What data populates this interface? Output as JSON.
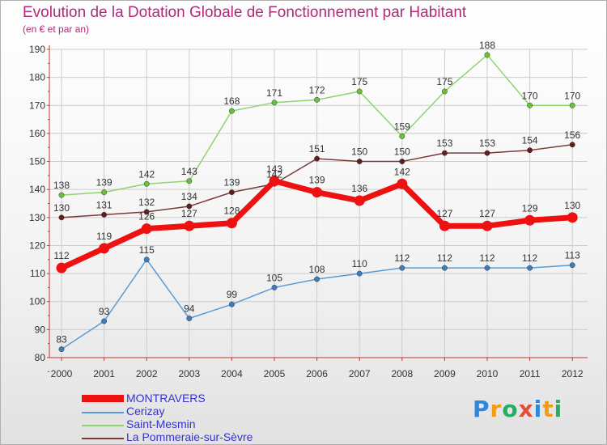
{
  "title": "Evolution de la Dotation Globale de Fonctionnement par Habitant",
  "subtitle": "(en € et par an)",
  "logo": [
    "P",
    "r",
    "o",
    "x",
    "i",
    "t",
    "i"
  ],
  "colors": {
    "title": "#b02a7a",
    "axis": "#c0392b",
    "grid": "#cccccc",
    "tick_label": "#333333"
  },
  "chart_data": {
    "type": "line",
    "title": "Evolution de la Dotation Globale de Fonctionnement par Habitant",
    "ylabel": "(en € et par an)",
    "xlabel": "",
    "categories": [
      "2000",
      "2001",
      "2002",
      "2003",
      "2004",
      "2005",
      "2006",
      "2007",
      "2008",
      "2009",
      "2010",
      "2011",
      "2012"
    ],
    "ylim": [
      80,
      190
    ],
    "yticks": [
      80,
      90,
      100,
      110,
      120,
      130,
      140,
      150,
      160,
      170,
      180,
      190
    ],
    "grid": true,
    "legend_position": "bottom-left",
    "series": [
      {
        "name": "Cerizay",
        "color": "#5b9bd5",
        "point": "#3a7ec2",
        "values": [
          83,
          93,
          115,
          94,
          99,
          105,
          108,
          110,
          112,
          112,
          112,
          112,
          113
        ]
      },
      {
        "name": "Saint-Mesmin",
        "color": "#8fd46f",
        "point": "#66c23a",
        "values": [
          138,
          139,
          142,
          143,
          168,
          171,
          172,
          175,
          159,
          175,
          188,
          170,
          170
        ]
      },
      {
        "name": "La Pommeraie-sur-Sèvre",
        "color": "#7a3a3a",
        "point": "#5e1f1f",
        "values": [
          130,
          131,
          132,
          134,
          139,
          142,
          151,
          150,
          150,
          153,
          153,
          154,
          156
        ]
      },
      {
        "name": "MONTRAVERS",
        "color": "#ee1111",
        "point": "#ee1111",
        "values": [
          112,
          119,
          126,
          127,
          128,
          143,
          139,
          136,
          142,
          127,
          127,
          129,
          130
        ]
      }
    ],
    "legend": [
      {
        "name": "MONTRAVERS",
        "color": "#ee1111",
        "label_color": "#3333cc"
      },
      {
        "name": "Cerizay",
        "color": "#5b9bd5",
        "label_color": "#3333cc"
      },
      {
        "name": "Saint-Mesmin",
        "color": "#8fd46f",
        "label_color": "#3333cc"
      },
      {
        "name": "La Pommeraie-sur-Sèvre",
        "color": "#7a3a3a",
        "label_color": "#3333cc"
      }
    ]
  }
}
